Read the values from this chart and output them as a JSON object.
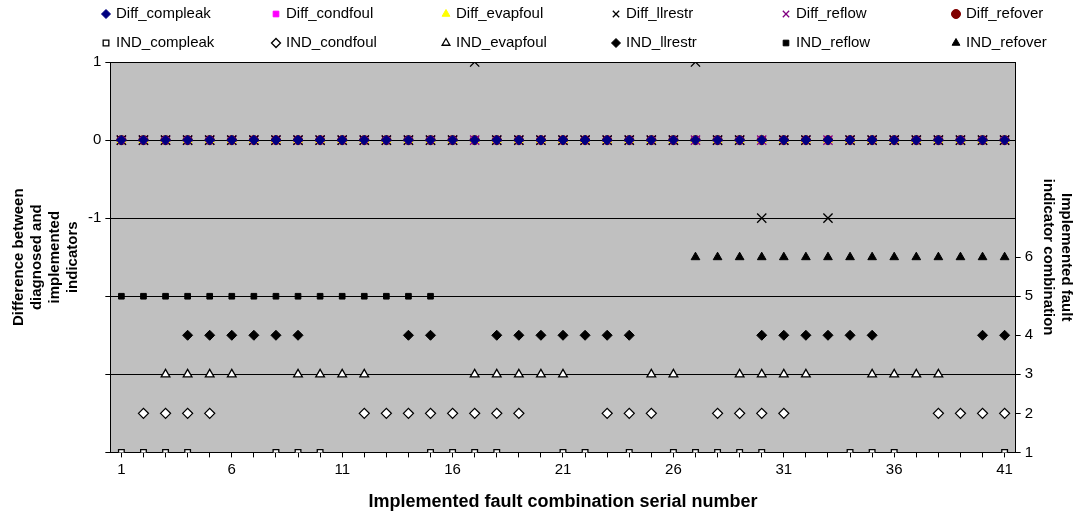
{
  "chart_data": {
    "type": "scatter",
    "xlabel": "Implemented fault combination serial number",
    "ylabel": "Difference between diagnosed and implemented indicators",
    "y2label": "Implemented fault indicator combination",
    "categories": [
      "1",
      null,
      null,
      null,
      null,
      "6",
      null,
      null,
      null,
      null,
      "11",
      null,
      null,
      null,
      null,
      "16",
      null,
      null,
      null,
      null,
      "21",
      null,
      null,
      null,
      null,
      "26",
      null,
      null,
      null,
      null,
      "31",
      null,
      null,
      null,
      null,
      "36",
      null,
      null,
      null,
      null,
      "41"
    ],
    "ylim": [
      -4,
      1
    ],
    "yticks": [
      {
        "value": -4,
        "label": null
      },
      {
        "value": -3,
        "label": null
      },
      {
        "value": -2,
        "label": null
      },
      -1,
      0,
      1
    ],
    "y2lim": [
      1,
      11
    ],
    "y2ticks": [
      1,
      2,
      3,
      4,
      5,
      6
    ],
    "grid": "y",
    "legend": "top",
    "series": [
      {
        "name": "Diff_compleak",
        "color": "#000080",
        "marker": "diamond",
        "values": [
          0,
          0,
          0,
          0,
          0,
          0,
          0,
          0,
          0,
          0,
          0,
          0,
          0,
          0,
          0,
          0,
          0,
          0,
          0,
          0,
          0,
          0,
          0,
          0,
          0,
          0,
          0,
          0,
          0,
          0,
          0,
          0,
          0,
          0,
          0,
          0,
          0,
          0,
          0,
          0,
          0
        ]
      },
      {
        "name": "Diff_condfoul",
        "color": "#ff00ff",
        "marker": "square",
        "values": [
          0,
          0,
          0,
          0,
          0,
          0,
          0,
          0,
          0,
          0,
          0,
          0,
          0,
          0,
          0,
          0,
          0,
          0,
          0,
          0,
          0,
          0,
          0,
          0,
          0,
          0,
          0,
          0,
          0,
          0,
          0,
          0,
          0,
          0,
          0,
          0,
          0,
          0,
          0,
          0,
          0
        ]
      },
      {
        "name": "Diff_evapfoul",
        "color": "#ffff00",
        "marker": "triangle",
        "values": [
          0,
          0,
          0,
          0,
          0,
          0,
          0,
          0,
          0,
          0,
          0,
          0,
          0,
          0,
          0,
          0,
          0,
          0,
          0,
          0,
          0,
          0,
          0,
          0,
          0,
          0,
          0,
          0,
          0,
          0,
          0,
          0,
          0,
          0,
          0,
          0,
          0,
          0,
          0,
          0,
          0
        ]
      },
      {
        "name": "Diff_llrestr",
        "color": "#000000",
        "marker": "cross",
        "values": [
          0,
          0,
          0,
          0,
          0,
          0,
          0,
          0,
          0,
          0,
          0,
          0,
          0,
          0,
          0,
          0,
          1,
          0,
          0,
          0,
          0,
          0,
          0,
          0,
          0,
          0,
          1,
          0,
          0,
          -1,
          0,
          0,
          -1,
          0,
          0,
          0,
          0,
          0,
          0,
          0,
          0
        ]
      },
      {
        "name": "Diff_reflow",
        "color": "#800080",
        "marker": "cross",
        "values": [
          0,
          0,
          0,
          0,
          0,
          0,
          0,
          0,
          0,
          0,
          0,
          0,
          0,
          0,
          0,
          0,
          0,
          0,
          0,
          0,
          0,
          0,
          0,
          0,
          0,
          0,
          0,
          0,
          0,
          0,
          0,
          0,
          0,
          0,
          0,
          0,
          0,
          0,
          0,
          0,
          0
        ]
      },
      {
        "name": "Diff_refover",
        "color": "#800000",
        "marker": "circle",
        "values": [
          0,
          0,
          0,
          0,
          0,
          0,
          0,
          0,
          0,
          0,
          0,
          0,
          0,
          0,
          0,
          0,
          0,
          0,
          0,
          0,
          0,
          0,
          0,
          0,
          0,
          0,
          0,
          0,
          0,
          0,
          0,
          0,
          0,
          0,
          0,
          0,
          0,
          0,
          0,
          0,
          0
        ]
      },
      {
        "name": "IND_compleak",
        "color": "#ffffff",
        "marker": "square",
        "axis": "y2",
        "values": [
          1,
          1,
          1,
          1,
          null,
          null,
          null,
          1,
          1,
          1,
          null,
          null,
          null,
          null,
          1,
          1,
          1,
          1,
          null,
          null,
          1,
          1,
          null,
          1,
          null,
          1,
          1,
          1,
          1,
          1,
          null,
          null,
          null,
          1,
          1,
          1,
          null,
          null,
          null,
          null,
          1
        ]
      },
      {
        "name": "IND_condfoul",
        "color": "#ffffff",
        "marker": "diamond",
        "axis": "y2",
        "values": [
          null,
          2,
          2,
          2,
          2,
          null,
          null,
          null,
          null,
          null,
          null,
          2,
          2,
          2,
          2,
          2,
          2,
          2,
          2,
          null,
          null,
          null,
          2,
          2,
          2,
          null,
          null,
          2,
          2,
          2,
          2,
          null,
          null,
          null,
          null,
          null,
          null,
          2,
          2,
          2,
          2
        ]
      },
      {
        "name": "IND_evapfoul",
        "color": "#ffffff",
        "marker": "triangle",
        "axis": "y2",
        "values": [
          null,
          null,
          3,
          3,
          3,
          3,
          null,
          null,
          3,
          3,
          3,
          3,
          null,
          null,
          null,
          null,
          3,
          3,
          3,
          3,
          3,
          null,
          null,
          null,
          3,
          3,
          null,
          null,
          3,
          3,
          3,
          3,
          null,
          null,
          3,
          3,
          3,
          3,
          null,
          null,
          null
        ]
      },
      {
        "name": "IND_llrestr",
        "color": "#000000",
        "marker": "diamond",
        "axis": "y2",
        "values": [
          null,
          null,
          null,
          4,
          4,
          4,
          4,
          4,
          4,
          null,
          null,
          null,
          null,
          4,
          4,
          null,
          null,
          4,
          4,
          4,
          4,
          4,
          4,
          4,
          null,
          null,
          null,
          null,
          null,
          4,
          4,
          4,
          4,
          4,
          4,
          null,
          null,
          null,
          null,
          4,
          4
        ]
      },
      {
        "name": "IND_reflow",
        "color": "#000000",
        "marker": "square",
        "axis": "y2",
        "values": [
          5,
          5,
          5,
          5,
          5,
          5,
          5,
          5,
          5,
          5,
          5,
          5,
          5,
          5,
          5,
          null,
          null,
          null,
          null,
          null,
          null,
          null,
          null,
          null,
          null,
          null,
          null,
          null,
          null,
          null,
          null,
          null,
          null,
          null,
          null,
          null,
          null,
          null,
          null,
          null,
          null
        ]
      },
      {
        "name": "IND_refover",
        "color": "#000000",
        "marker": "triangle",
        "axis": "y2",
        "values": [
          null,
          null,
          null,
          null,
          null,
          null,
          null,
          null,
          null,
          null,
          null,
          null,
          null,
          null,
          null,
          null,
          null,
          null,
          null,
          null,
          null,
          null,
          null,
          null,
          null,
          null,
          6,
          6,
          6,
          6,
          6,
          6,
          6,
          6,
          6,
          6,
          6,
          6,
          6,
          6,
          6
        ]
      }
    ]
  }
}
